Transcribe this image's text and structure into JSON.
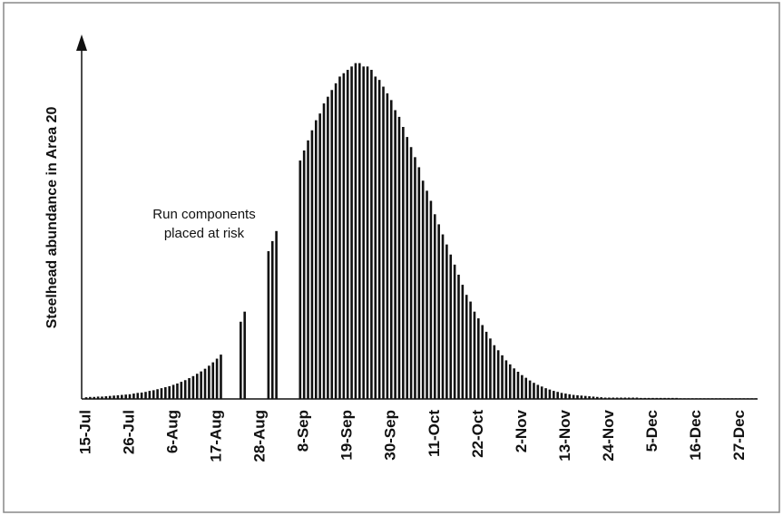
{
  "chart_data": {
    "type": "bar",
    "y_label": "Steelhead abundance in Area 20",
    "annotation": [
      "Run components",
      "placed at risk"
    ],
    "color": "#111111",
    "ylim": [
      0,
      108
    ],
    "categories": [
      "15-Jul",
      null,
      null,
      null,
      null,
      null,
      null,
      null,
      null,
      null,
      null,
      "26-Jul",
      null,
      null,
      null,
      null,
      null,
      null,
      null,
      null,
      null,
      null,
      "6-Aug",
      null,
      null,
      null,
      null,
      null,
      null,
      null,
      null,
      null,
      null,
      "17-Aug",
      null,
      null,
      null,
      null,
      null,
      null,
      null,
      null,
      null,
      null,
      "28-Aug",
      null,
      null,
      null,
      null,
      null,
      null,
      null,
      null,
      null,
      null,
      "8-Sep",
      null,
      null,
      null,
      null,
      null,
      null,
      null,
      null,
      null,
      null,
      "19-Sep",
      null,
      null,
      null,
      null,
      null,
      null,
      null,
      null,
      null,
      null,
      "30-Sep",
      null,
      null,
      null,
      null,
      null,
      null,
      null,
      null,
      null,
      null,
      "11-Oct",
      null,
      null,
      null,
      null,
      null,
      null,
      null,
      null,
      null,
      null,
      "22-Oct",
      null,
      null,
      null,
      null,
      null,
      null,
      null,
      null,
      null,
      null,
      "2-Nov",
      null,
      null,
      null,
      null,
      null,
      null,
      null,
      null,
      null,
      null,
      "13-Nov",
      null,
      null,
      null,
      null,
      null,
      null,
      null,
      null,
      null,
      null,
      "24-Nov",
      null,
      null,
      null,
      null,
      null,
      null,
      null,
      null,
      null,
      null,
      "5-Dec",
      null,
      null,
      null,
      null,
      null,
      null,
      null,
      null,
      null,
      null,
      "16-Dec",
      null,
      null,
      null,
      null,
      null,
      null,
      null,
      null,
      null,
      null,
      "27-Dec",
      null,
      null,
      null,
      null
    ],
    "values": [
      0.5,
      0.6,
      0.6,
      0.7,
      0.7,
      0.8,
      0.9,
      1.0,
      1.1,
      1.2,
      1.3,
      1.4,
      1.6,
      1.8,
      1.9,
      2.1,
      2.4,
      2.6,
      2.9,
      3.2,
      3.5,
      3.8,
      4.2,
      4.6,
      5.1,
      5.6,
      6.2,
      6.8,
      7.5,
      8.2,
      9.0,
      9.9,
      10.9,
      12.0,
      13.2,
      0,
      0,
      0,
      0,
      23,
      26,
      0,
      0,
      0,
      0,
      0,
      44,
      47,
      50,
      0,
      0,
      0,
      0,
      0,
      71,
      74,
      77,
      80,
      83,
      85,
      88,
      90,
      92,
      94,
      96,
      97,
      98,
      99,
      100,
      100,
      99,
      99,
      98,
      96,
      95,
      93,
      91,
      89,
      86,
      84,
      81,
      78,
      75,
      72,
      69,
      65,
      62,
      59,
      55,
      52,
      49,
      46,
      43,
      40,
      37,
      34,
      31,
      29,
      26,
      24,
      22,
      20,
      18,
      16,
      14.5,
      13,
      11.5,
      10.3,
      9.1,
      8.1,
      7.1,
      6.3,
      5.5,
      4.8,
      4.2,
      3.7,
      3.2,
      2.8,
      2.4,
      2.1,
      1.8,
      1.6,
      1.4,
      1.2,
      1.1,
      1.0,
      0.9,
      0.8,
      0.7,
      0.6,
      0.5,
      0.4,
      0.4,
      0.4,
      0.4,
      0.4,
      0.4,
      0.4,
      0.4,
      0.4,
      0.3,
      0.3,
      0.3,
      0.3,
      0.3,
      0.3,
      0.3,
      0.3,
      0.3,
      0.3,
      0.2,
      0.2,
      0.2,
      0.2,
      0.2,
      0.2,
      0.2,
      0.2,
      0.2,
      0.2,
      0.2,
      0.2,
      0.2,
      0.2,
      0.2,
      0.2,
      0.2,
      0.2,
      0.2,
      0.2
    ]
  }
}
